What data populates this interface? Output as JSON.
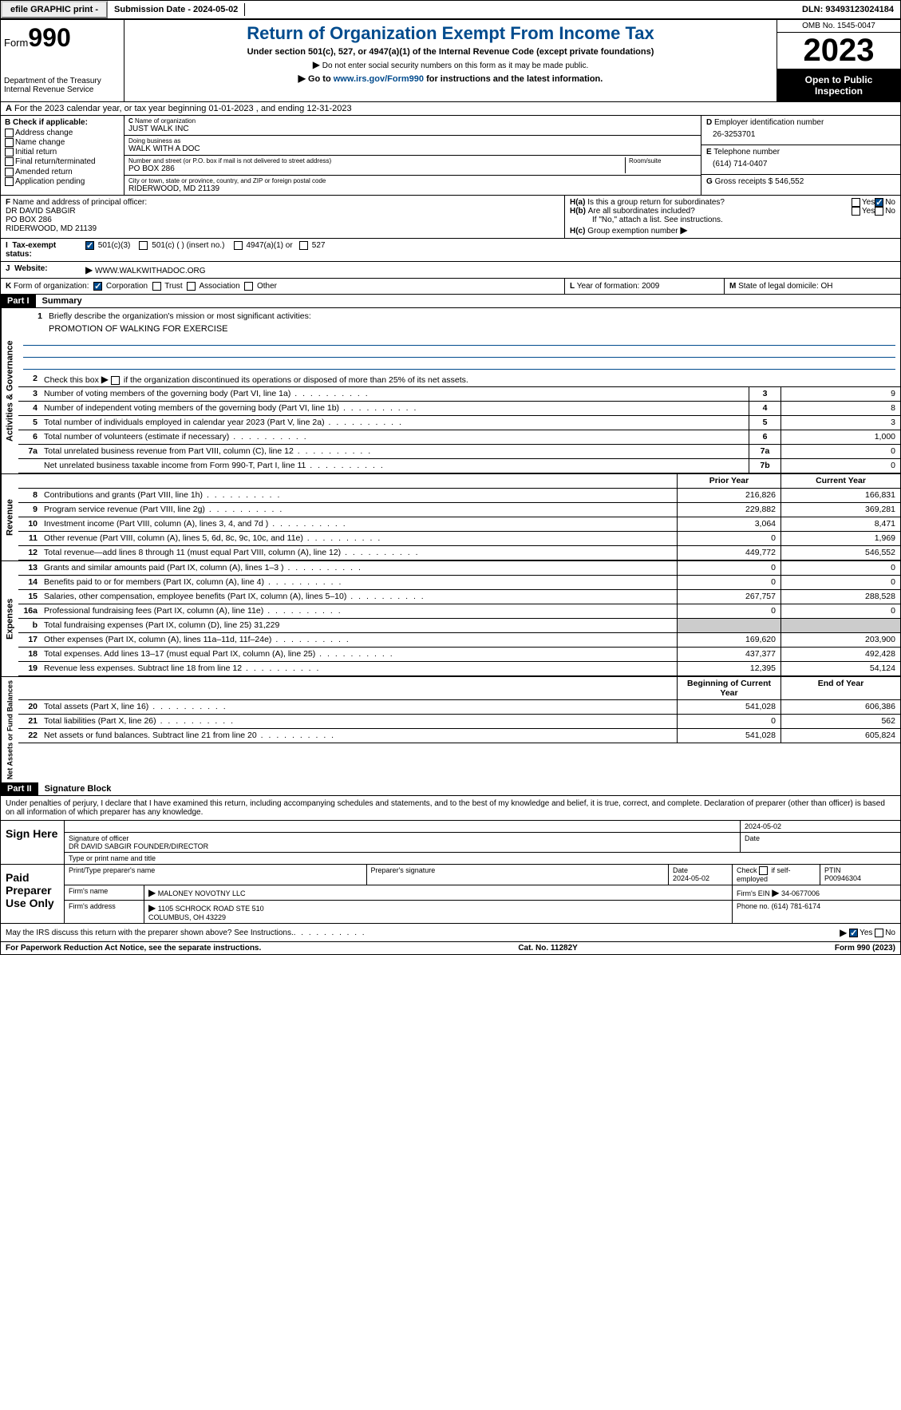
{
  "topbar": {
    "efile": "efile GRAPHIC print -",
    "submission": "Submission Date - 2024-05-02",
    "dln": "DLN: 93493123024184"
  },
  "header": {
    "form_label": "Form",
    "form_num": "990",
    "dept": "Department of the Treasury\nInternal Revenue Service",
    "title": "Return of Organization Exempt From Income Tax",
    "subtitle": "Under section 501(c), 527, or 4947(a)(1) of the Internal Revenue Code (except private foundations)",
    "note1": "Do not enter social security numbers on this form as it may be made public.",
    "goto": "Go to ",
    "goto_link": "www.irs.gov/Form990",
    "goto_suffix": " for instructions and the latest information.",
    "omb": "OMB No. 1545-0047",
    "year": "2023",
    "openpub": "Open to Public Inspection"
  },
  "lineA": "For the 2023 calendar year, or tax year beginning 01-01-2023   , and ending 12-31-2023",
  "boxB": {
    "label": "Check if applicable:",
    "opts": [
      "Address change",
      "Name change",
      "Initial return",
      "Final return/terminated",
      "Amended return",
      "Application pending"
    ]
  },
  "boxC": {
    "name_lbl": "Name of organization",
    "name": "JUST WALK INC",
    "dba_lbl": "Doing business as",
    "dba": "WALK WITH A DOC",
    "addr_lbl": "Number and street (or P.O. box if mail is not delivered to street address)",
    "room_lbl": "Room/suite",
    "addr": "PO BOX 286",
    "city_lbl": "City or town, state or province, country, and ZIP or foreign postal code",
    "city": "RIDERWOOD, MD  21139"
  },
  "boxD": {
    "ein_lbl": "Employer identification number",
    "ein": "26-3253701",
    "phone_lbl": "Telephone number",
    "phone": "(614) 714-0407",
    "gross_lbl": "Gross receipts $",
    "gross": "546,552"
  },
  "boxF": {
    "lbl": "Name and address of principal officer:",
    "name": "DR DAVID SABGIR",
    "addr1": "PO BOX 286",
    "addr2": "RIDERWOOD, MD  21139"
  },
  "boxH": {
    "a": "Is this a group return for subordinates?",
    "b": "Are all subordinates included?",
    "note": "If \"No,\" attach a list. See instructions.",
    "c": "Group exemption number",
    "yes": "Yes",
    "no": "No"
  },
  "taxExempt": {
    "lbl": "Tax-exempt status:",
    "opts": [
      "501(c)(3)",
      "501(c) (  ) (insert no.)",
      "4947(a)(1) or",
      "527"
    ]
  },
  "website": {
    "lbl": "Website:",
    "val": "WWW.WALKWITHADOC.ORG"
  },
  "boxK": {
    "lbl": "Form of organization:",
    "opts": [
      "Corporation",
      "Trust",
      "Association",
      "Other"
    ]
  },
  "boxL": {
    "lbl": "Year of formation:",
    "val": "2009"
  },
  "boxM": {
    "lbl": "State of legal domicile:",
    "val": "OH"
  },
  "part1": {
    "label": "Part I",
    "title": "Summary",
    "sections": {
      "gov": "Activities & Governance",
      "rev": "Revenue",
      "exp": "Expenses",
      "net": "Net Assets or Fund Balances"
    },
    "l1": "Briefly describe the organization's mission or most significant activities:",
    "mission": "PROMOTION OF WALKING FOR EXERCISE",
    "l2": "Check this box        if the organization discontinued its operations or disposed of more than 25% of its net assets.",
    "lines_gov": [
      {
        "n": "3",
        "d": "Number of voting members of the governing body (Part VI, line 1a)",
        "box": "3",
        "v": "9"
      },
      {
        "n": "4",
        "d": "Number of independent voting members of the governing body (Part VI, line 1b)",
        "box": "4",
        "v": "8"
      },
      {
        "n": "5",
        "d": "Total number of individuals employed in calendar year 2023 (Part V, line 2a)",
        "box": "5",
        "v": "3"
      },
      {
        "n": "6",
        "d": "Total number of volunteers (estimate if necessary)",
        "box": "6",
        "v": "1,000"
      },
      {
        "n": "7a",
        "d": "Total unrelated business revenue from Part VIII, column (C), line 12",
        "box": "7a",
        "v": "0"
      },
      {
        "n": "",
        "d": "Net unrelated business taxable income from Form 990-T, Part I, line 11",
        "box": "7b",
        "v": "0"
      }
    ],
    "col_prior": "Prior Year",
    "col_curr": "Current Year",
    "lines_rev": [
      {
        "n": "8",
        "d": "Contributions and grants (Part VIII, line 1h)",
        "p": "216,826",
        "c": "166,831"
      },
      {
        "n": "9",
        "d": "Program service revenue (Part VIII, line 2g)",
        "p": "229,882",
        "c": "369,281"
      },
      {
        "n": "10",
        "d": "Investment income (Part VIII, column (A), lines 3, 4, and 7d )",
        "p": "3,064",
        "c": "8,471"
      },
      {
        "n": "11",
        "d": "Other revenue (Part VIII, column (A), lines 5, 6d, 8c, 9c, 10c, and 11e)",
        "p": "0",
        "c": "1,969"
      },
      {
        "n": "12",
        "d": "Total revenue—add lines 8 through 11 (must equal Part VIII, column (A), line 12)",
        "p": "449,772",
        "c": "546,552"
      }
    ],
    "lines_exp": [
      {
        "n": "13",
        "d": "Grants and similar amounts paid (Part IX, column (A), lines 1–3 )",
        "p": "0",
        "c": "0"
      },
      {
        "n": "14",
        "d": "Benefits paid to or for members (Part IX, column (A), line 4)",
        "p": "0",
        "c": "0"
      },
      {
        "n": "15",
        "d": "Salaries, other compensation, employee benefits (Part IX, column (A), lines 5–10)",
        "p": "267,757",
        "c": "288,528"
      },
      {
        "n": "16a",
        "d": "Professional fundraising fees (Part IX, column (A), line 11e)",
        "p": "0",
        "c": "0"
      },
      {
        "n": "b",
        "d": "Total fundraising expenses (Part IX, column (D), line 25) 31,229",
        "shaded": true
      },
      {
        "n": "17",
        "d": "Other expenses (Part IX, column (A), lines 11a–11d, 11f–24e)",
        "p": "169,620",
        "c": "203,900"
      },
      {
        "n": "18",
        "d": "Total expenses. Add lines 13–17 (must equal Part IX, column (A), line 25)",
        "p": "437,377",
        "c": "492,428"
      },
      {
        "n": "19",
        "d": "Revenue less expenses. Subtract line 18 from line 12",
        "p": "12,395",
        "c": "54,124"
      }
    ],
    "col_begin": "Beginning of Current Year",
    "col_end": "End of Year",
    "lines_net": [
      {
        "n": "20",
        "d": "Total assets (Part X, line 16)",
        "p": "541,028",
        "c": "606,386"
      },
      {
        "n": "21",
        "d": "Total liabilities (Part X, line 26)",
        "p": "0",
        "c": "562"
      },
      {
        "n": "22",
        "d": "Net assets or fund balances. Subtract line 21 from line 20",
        "p": "541,028",
        "c": "605,824"
      }
    ]
  },
  "part2": {
    "label": "Part II",
    "title": "Signature Block",
    "perjury": "Under penalties of perjury, I declare that I have examined this return, including accompanying schedules and statements, and to the best of my knowledge and belief, it is true, correct, and complete. Declaration of preparer (other than officer) is based on all information of which preparer has any knowledge."
  },
  "sign": {
    "here": "Sign Here",
    "sig_lbl": "Signature of officer",
    "date_lbl": "Date",
    "date": "2024-05-02",
    "name": "DR DAVID SABGIR  FOUNDER/DIRECTOR",
    "type_lbl": "Type or print name and title"
  },
  "paid": {
    "title": "Paid Preparer Use Only",
    "print_lbl": "Print/Type preparer's name",
    "sig_lbl": "Preparer's signature",
    "date_lbl": "Date",
    "date": "2024-05-02",
    "check_lbl": "Check         if self-employed",
    "ptin_lbl": "PTIN",
    "ptin": "P00946304",
    "firm_name_lbl": "Firm's name",
    "firm_name": "MALONEY NOVOTNY LLC",
    "firm_ein_lbl": "Firm's EIN",
    "firm_ein": "34-0677006",
    "firm_addr_lbl": "Firm's address",
    "firm_addr": "1105 SCHROCK ROAD STE 510\nCOLUMBUS, OH  43229",
    "phone_lbl": "Phone no.",
    "phone": "(614) 781-6174"
  },
  "discuss": "May the IRS discuss this return with the preparer shown above? See Instructions.",
  "footer": {
    "paperwork": "For Paperwork Reduction Act Notice, see the separate instructions.",
    "cat": "Cat. No. 11282Y",
    "form": "Form 990 (2023)"
  }
}
